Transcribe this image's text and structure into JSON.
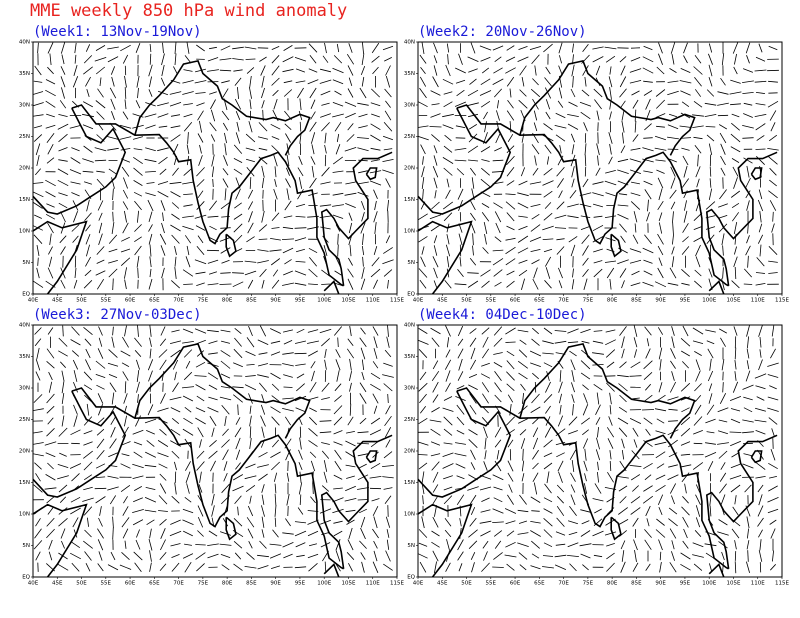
{
  "title": "MME weekly 850 hPa wind anomaly",
  "panels": [
    {
      "label": "(Week1: 13Nov-19Nov)"
    },
    {
      "label": "(Week2: 20Nov-26Nov)"
    },
    {
      "label": "(Week3: 27Nov-03Dec)"
    },
    {
      "label": "(Week4: 04Dec-10Dec)"
    }
  ],
  "lon_labels": [
    "40E",
    "45E",
    "50E",
    "55E",
    "60E",
    "65E",
    "70E",
    "75E",
    "80E",
    "85E",
    "90E",
    "95E",
    "100E",
    "105E",
    "110E",
    "115E"
  ],
  "lat_labels": [
    "40N",
    "35N",
    "30N",
    "25N",
    "20N",
    "15N",
    "10N",
    "5N",
    "EQ"
  ]
}
